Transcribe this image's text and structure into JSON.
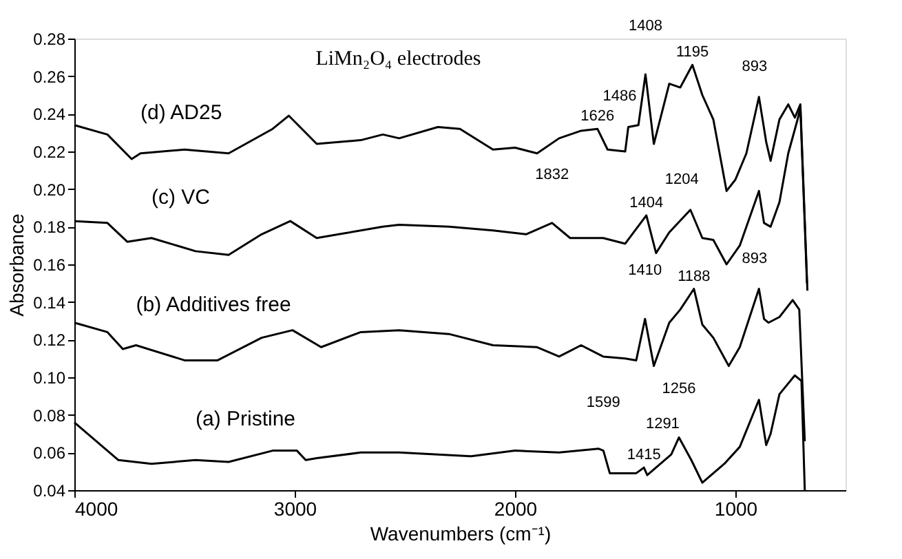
{
  "chart_data": {
    "type": "line",
    "title": "LiMn₂O₄ electrodes",
    "xlabel": "Wavenumbers (cm⁻¹)",
    "ylabel": "Absorbance",
    "xlim": [
      4000,
      500
    ],
    "xticks": [
      4000,
      3000,
      2000,
      1000
    ],
    "ylim": [
      0.04,
      0.28
    ],
    "yticks": [
      0.04,
      0.06,
      0.08,
      {
        "value": 0.1,
        "label": "0.10"
      },
      0.12,
      0.14,
      0.16,
      0.18,
      {
        "value": 0.2,
        "label": "0.20"
      },
      0.22,
      0.24,
      0.26,
      0.28
    ],
    "grid": false,
    "legend": false,
    "marker": "none",
    "line_style": "solid",
    "series": [
      {
        "name": "(d) AD25",
        "color": "#000000",
        "x": [
          4000,
          3850,
          3740,
          3700,
          3500,
          3300,
          3100,
          3027,
          2900,
          2800,
          2700,
          2600,
          2526,
          2350,
          2250,
          2100,
          2000,
          1900,
          1800,
          1700,
          1626,
          1580,
          1500,
          1486,
          1440,
          1408,
          1370,
          1300,
          1250,
          1195,
          1150,
          1100,
          1040,
          1000,
          950,
          893,
          860,
          840,
          800,
          760,
          730,
          705,
          673
        ],
        "values": [
          0.234,
          0.229,
          0.216,
          0.219,
          0.221,
          0.219,
          0.232,
          0.239,
          0.224,
          0.225,
          0.226,
          0.229,
          0.227,
          0.233,
          0.232,
          0.221,
          0.222,
          0.219,
          0.227,
          0.231,
          0.232,
          0.221,
          0.22,
          0.233,
          0.234,
          0.261,
          0.224,
          0.256,
          0.254,
          0.266,
          0.25,
          0.237,
          0.199,
          0.205,
          0.219,
          0.249,
          0.225,
          0.215,
          0.237,
          0.245,
          0.238,
          0.245,
          0.146
        ]
      },
      {
        "name": "(c) VC",
        "color": "#000000",
        "x": [
          4000,
          3850,
          3760,
          3650,
          3450,
          3300,
          3150,
          3020,
          2900,
          2800,
          2600,
          2526,
          2300,
          2100,
          1950,
          1832,
          1750,
          1600,
          1500,
          1404,
          1360,
          1300,
          1204,
          1150,
          1100,
          1040,
          980,
          893,
          870,
          840,
          800,
          760,
          720,
          705,
          675
        ],
        "values": [
          0.183,
          0.182,
          0.172,
          0.174,
          0.167,
          0.165,
          0.176,
          0.183,
          0.174,
          0.176,
          0.18,
          0.181,
          0.18,
          0.178,
          0.176,
          0.182,
          0.174,
          0.174,
          0.171,
          0.186,
          0.166,
          0.177,
          0.189,
          0.174,
          0.173,
          0.16,
          0.17,
          0.199,
          0.182,
          0.18,
          0.193,
          0.219,
          0.236,
          0.243,
          0.15
        ]
      },
      {
        "name": "(b) Additives free",
        "color": "#000000",
        "x": [
          4000,
          3850,
          3780,
          3720,
          3500,
          3350,
          3150,
          3010,
          2880,
          2700,
          2526,
          2300,
          2100,
          1900,
          1800,
          1700,
          1600,
          1500,
          1450,
          1410,
          1370,
          1300,
          1250,
          1188,
          1150,
          1100,
          1030,
          980,
          893,
          870,
          850,
          800,
          740,
          710,
          685
        ],
        "values": [
          0.129,
          0.124,
          0.115,
          0.117,
          0.109,
          0.109,
          0.121,
          0.125,
          0.116,
          0.124,
          0.125,
          0.123,
          0.117,
          0.116,
          0.111,
          0.117,
          0.111,
          0.11,
          0.109,
          0.131,
          0.106,
          0.129,
          0.136,
          0.147,
          0.128,
          0.121,
          0.106,
          0.116,
          0.147,
          0.131,
          0.129,
          0.132,
          0.141,
          0.136,
          0.066
        ]
      },
      {
        "name": "(a) Pristine",
        "color": "#000000",
        "x": [
          4000,
          3800,
          3650,
          3450,
          3300,
          3100,
          2990,
          2950,
          2900,
          2700,
          2526,
          2200,
          2000,
          1800,
          1620,
          1599,
          1570,
          1450,
          1415,
          1400,
          1291,
          1256,
          1200,
          1150,
          1050,
          980,
          893,
          860,
          840,
          800,
          730,
          700,
          685
        ],
        "values": [
          0.076,
          0.056,
          0.054,
          0.056,
          0.055,
          0.061,
          0.061,
          0.056,
          0.057,
          0.06,
          0.06,
          0.058,
          0.061,
          0.06,
          0.062,
          0.061,
          0.049,
          0.049,
          0.052,
          0.048,
          0.059,
          0.068,
          0.056,
          0.044,
          0.054,
          0.063,
          0.088,
          0.064,
          0.07,
          0.091,
          0.101,
          0.098,
          0.04
        ]
      }
    ],
    "annotations": [
      {
        "text": "1626",
        "x": 1626,
        "y": 0.232
      },
      {
        "text": "1486",
        "x": 1486,
        "y": 0.233
      },
      {
        "text": "1408",
        "x": 1408,
        "y": 0.261
      },
      {
        "text": "1195",
        "x": 1195,
        "y": 0.266
      },
      {
        "text": "893",
        "x": 893,
        "y": 0.249
      },
      {
        "text": "1832",
        "x": 1832,
        "y": 0.182
      },
      {
        "text": "1404",
        "x": 1404,
        "y": 0.186
      },
      {
        "text": "1204",
        "x": 1204,
        "y": 0.189
      },
      {
        "text": "1410",
        "x": 1410,
        "y": 0.131
      },
      {
        "text": "1188",
        "x": 1188,
        "y": 0.147
      },
      {
        "text": "893",
        "x": 893,
        "y": 0.147
      },
      {
        "text": "1599",
        "x": 1599,
        "y": 0.061
      },
      {
        "text": "1415",
        "x": 1415,
        "y": 0.052
      },
      {
        "text": "1291",
        "x": 1291,
        "y": 0.059
      },
      {
        "text": "1256",
        "x": 1256,
        "y": 0.068
      }
    ]
  }
}
